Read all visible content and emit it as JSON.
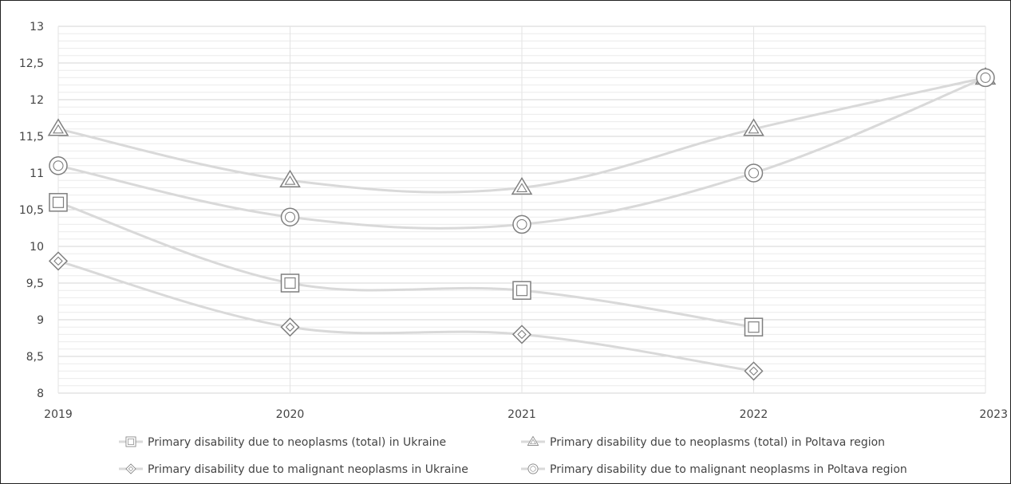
{
  "chart_data": {
    "type": "line",
    "title": "",
    "xlabel": "",
    "ylabel": "",
    "x": [
      "2019",
      "2020",
      "2021",
      "2022",
      "2023"
    ],
    "ylim": [
      8,
      13
    ],
    "y_tick_step": 0.5,
    "y_ticks": [
      "8",
      "8,5",
      "9",
      "9,5",
      "10",
      "10,5",
      "11",
      "11,5",
      "12",
      "12,5",
      "13"
    ],
    "grid": true,
    "legend_position": "bottom",
    "series": [
      {
        "name": "Primary disability due to neoplasms (total) in Ukraine",
        "marker": "square",
        "values": [
          10.6,
          9.5,
          9.4,
          8.9,
          null
        ]
      },
      {
        "name": "Primary disability due to neoplasms (total) in Poltava region",
        "marker": "triangle",
        "values": [
          11.6,
          10.9,
          10.8,
          11.6,
          12.3
        ]
      },
      {
        "name": "Primary disability due to malignant neoplasms in Ukraine",
        "marker": "diamond",
        "values": [
          9.8,
          8.9,
          8.8,
          8.3,
          null
        ]
      },
      {
        "name": "Primary disability due to malignant neoplasms in Poltava region",
        "marker": "circle",
        "values": [
          11.1,
          10.4,
          10.3,
          11.0,
          12.3
        ]
      }
    ],
    "colors": {
      "line": "#d9d9d9",
      "marker_stroke": "#7f7f7f",
      "grid": "#e3e3e3"
    }
  }
}
